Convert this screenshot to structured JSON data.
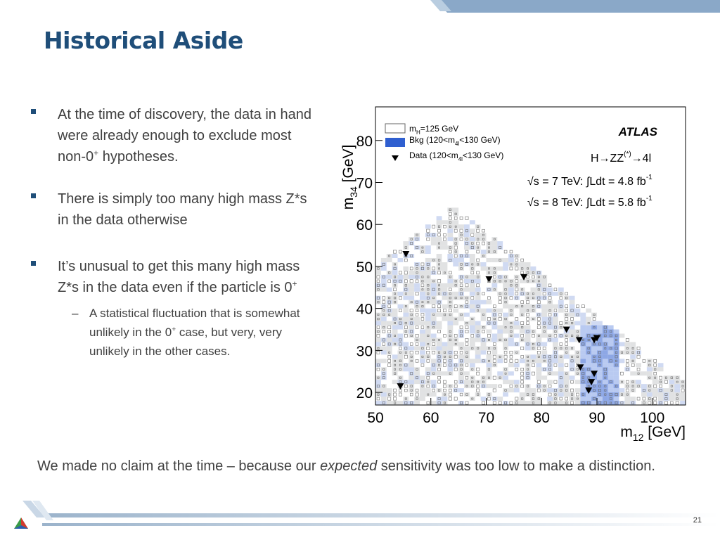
{
  "slide": {
    "title": "Historical Aside",
    "page_number": "21",
    "bullets": [
      {
        "before": "At the time of discovery, the data in hand were already enough to exclude most non-0",
        "sup": "+",
        "after": " hypotheses."
      },
      {
        "text": "There is simply too many high mass Z*s in the data otherwise"
      },
      {
        "text": "It’s unusual to get this many high mass Z*s in the data even if the particle is 0",
        "sup": "+"
      }
    ],
    "sub_bullet": {
      "marker": "–",
      "before": "A statistical fluctuation that is somewhat unlikely in the 0",
      "sup": "+",
      "after": " case, but very, very unlikely in the other cases."
    },
    "conclusion": {
      "before": "We made no claim at the time – because our ",
      "emphasis": "expected",
      "after": " sensitivity was too low to make a distinction."
    },
    "colors": {
      "title": "#1f4e79",
      "text": "#404040",
      "accent_band": "#8aa8c8"
    },
    "icons": {
      "bullet": "square-bullet",
      "logo": "triangle-logo"
    }
  },
  "chart_data": {
    "type": "heatmap",
    "experiment": "ATLAS",
    "xlabel": "m12 [GeV]",
    "ylabel": "m34 [GeV]",
    "xlim": [
      50,
      106
    ],
    "ylim": [
      17,
      88
    ],
    "x_ticks": [
      50,
      60,
      70,
      80,
      90,
      100
    ],
    "y_ticks": [
      20,
      30,
      40,
      50,
      60,
      70,
      80
    ],
    "legend": {
      "placement": "top-left",
      "entries": [
        {
          "label": "mH=125 GeV",
          "style": "open-box"
        },
        {
          "label": "Bkg (120<m4l<130 GeV)",
          "style": "filled-box",
          "color": "#2f5fd0"
        },
        {
          "label": "Data (120<m4l<130 GeV)",
          "style": "down-triangle"
        }
      ]
    },
    "annotations": [
      "H→ZZ(*)→4l",
      "√s = 7 TeV: ∫Ldt = 4.8 fb-1",
      "√s = 8 TeV: ∫Ldt = 5.8 fb-1"
    ],
    "colors": {
      "signal_box": "#6d6d6d",
      "bkg_fill": "#2f5fd0",
      "grey_fill": "#c8cacc"
    },
    "data_points": [
      {
        "x": 55.5,
        "y": 53
      },
      {
        "x": 54.5,
        "y": 21.5
      },
      {
        "x": 70.5,
        "y": 47
      },
      {
        "x": 76.8,
        "y": 47.5
      },
      {
        "x": 84.5,
        "y": 35
      },
      {
        "x": 86.8,
        "y": 32.5
      },
      {
        "x": 89.5,
        "y": 32.5
      },
      {
        "x": 90.0,
        "y": 33
      },
      {
        "x": 87.0,
        "y": 26
      },
      {
        "x": 89.5,
        "y": 24.5
      },
      {
        "x": 89.0,
        "y": 22.5
      },
      {
        "x": 88.5,
        "y": 20.5
      }
    ]
  }
}
